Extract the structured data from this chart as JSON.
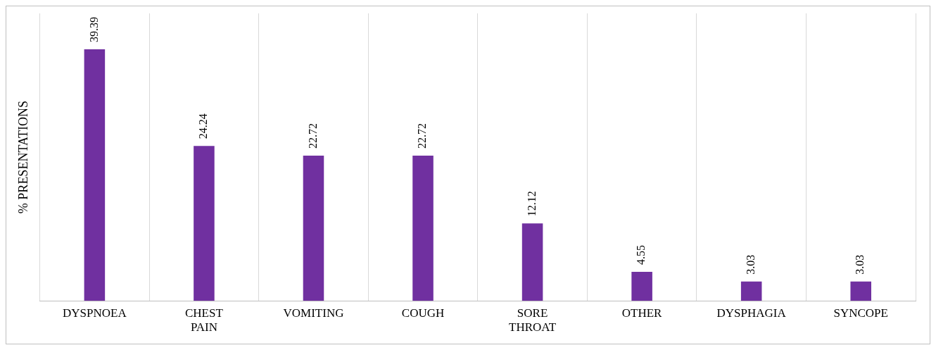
{
  "chart_data": {
    "type": "bar",
    "ylabel": "% PRESENTATIONS",
    "categories": [
      "DYSPNOEA",
      "CHEST PAIN",
      "VOMITING",
      "COUGH",
      "SORE THROAT",
      "OTHER",
      "DYSPHAGIA",
      "SYNCOPE"
    ],
    "values": [
      39.39,
      24.24,
      22.72,
      22.72,
      12.12,
      4.55,
      3.03,
      3.03
    ],
    "color": "#7030a0",
    "data_labels": true,
    "grid": "x",
    "legend": false,
    "tick_labels": "x"
  }
}
